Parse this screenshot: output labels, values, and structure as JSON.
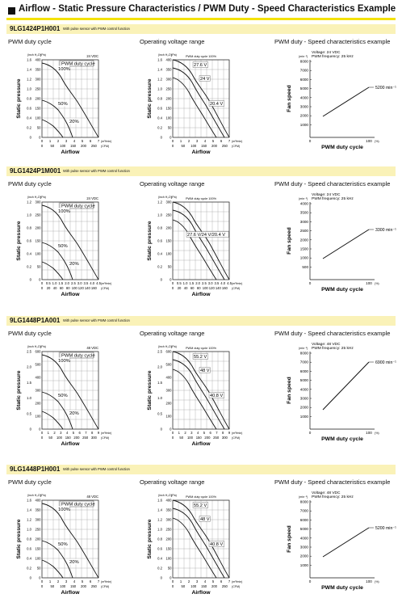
{
  "page_title": "Airflow - Static Pressure Characteristics / PWM Duty - Speed Characteristics Example",
  "panel_titles": [
    "PWM duty cycle",
    "Operating voltage range",
    "PWM duty - Speed characteristics example"
  ],
  "models": [
    {
      "name": "9LG1424P1H001",
      "note": "With pulse sensor with PWM control function",
      "duty_chart": {
        "voltage": "24 VDC",
        "ylabel": "Static pressure",
        "xlabel": "Airflow",
        "y_inch_ticks": [
          "1.6",
          "1.4",
          "1.2",
          "1.0",
          "0.8",
          "0.6",
          "0.4",
          "0.2",
          "0"
        ],
        "y_pa_ticks": [
          "400",
          "350",
          "300",
          "250",
          "200",
          "150",
          "100",
          "50",
          "0"
        ],
        "x_m3_ticks": [
          "0",
          "1",
          "2",
          "3",
          "4",
          "5",
          "6",
          "7"
        ],
        "x_cfm_ticks": [
          "0",
          "50",
          "100",
          "150",
          "200",
          "250"
        ],
        "legend": "PWM duty cycle",
        "labels": [
          "100%",
          "50%",
          "20%"
        ]
      },
      "volt_chart": {
        "ylabel": "Static pressure",
        "xlabel": "Airflow",
        "condition": "PWM duty cycle 100%",
        "labels": [
          "27.6 V",
          "24 V",
          "20.4 V"
        ]
      },
      "speed_chart": {
        "ylabel": "Fan speed",
        "xlabel": "PWM duty cycle",
        "condition": "Voltage: 24 VDC",
        "frequency": "PWM frequency: 25 kHz",
        "y_ticks": [
          "8000",
          "7000",
          "6000",
          "5000",
          "4000",
          "3000",
          "2000",
          "1000"
        ],
        "annotation": "5200 min⁻¹",
        "x_end": "100"
      }
    },
    {
      "name": "9LG1424P1M001",
      "note": "With pulse sensor with PWM control function",
      "duty_chart": {
        "voltage": "24 VDC",
        "ylabel": "Static pressure",
        "xlabel": "Airflow",
        "y_inch_ticks": [
          "1.2",
          "1.0",
          "0.8",
          "0.6",
          "0.4",
          "0.2",
          "0"
        ],
        "y_pa_ticks": [
          "300",
          "250",
          "200",
          "150",
          "100",
          "50",
          "0"
        ],
        "x_m3_ticks": [
          "0",
          "0.5",
          "1.0",
          "1.5",
          "2.0",
          "2.5",
          "3.0",
          "3.5",
          "4.0",
          "4.5"
        ],
        "x_cfm_ticks": [
          "0",
          "20",
          "40",
          "60",
          "80",
          "100",
          "120",
          "140",
          "160"
        ],
        "legend": "PWM duty cycle",
        "labels": [
          "100%",
          "50%",
          "20%"
        ]
      },
      "volt_chart": {
        "ylabel": "Static pressure",
        "xlabel": "Airflow",
        "condition": "PWM duty cycle 100%",
        "labels": [
          "27.6 V/24 V/20.4 V"
        ]
      },
      "speed_chart": {
        "ylabel": "Fan speed",
        "xlabel": "PWM duty cycle",
        "condition": "Voltage: 24 VDC",
        "frequency": "PWM frequency: 25 kHz",
        "y_ticks": [
          "4000",
          "3500",
          "3000",
          "2500",
          "2000",
          "1500",
          "1000",
          "500"
        ],
        "annotation": "3300 min⁻¹",
        "x_end": "100"
      }
    },
    {
      "name": "9LG1448P1A001",
      "note": "With pulse sensor with PWM control function",
      "duty_chart": {
        "voltage": "48 VDC",
        "ylabel": "Static pressure",
        "xlabel": "Airflow",
        "y_inch_ticks": [
          "2.5",
          "2.0",
          "1.5",
          "1.0",
          "0.5",
          "0"
        ],
        "y_pa_ticks": [
          "600",
          "500",
          "400",
          "300",
          "200",
          "100",
          "0"
        ],
        "x_m3_ticks": [
          "0",
          "1",
          "2",
          "3",
          "4",
          "5",
          "6",
          "7",
          "8",
          "9"
        ],
        "x_cfm_ticks": [
          "0",
          "50",
          "100",
          "150",
          "200",
          "250",
          "300"
        ],
        "legend": "PWM duty cycle",
        "labels": [
          "100%",
          "50%",
          "20%"
        ]
      },
      "volt_chart": {
        "ylabel": "Static pressure",
        "xlabel": "Airflow",
        "condition": "PWM duty cycle 100%",
        "labels": [
          "55.2 V",
          "48 V",
          "40.8 V"
        ]
      },
      "speed_chart": {
        "ylabel": "Fan speed",
        "xlabel": "PWM duty cycle",
        "condition": "Voltage: 48 VDC",
        "frequency": "PWM frequency: 25 kHz",
        "y_ticks": [
          "8000",
          "7000",
          "6000",
          "5000",
          "4000",
          "3000",
          "2000",
          "1000"
        ],
        "annotation": "6900 min⁻¹",
        "x_end": "100"
      }
    },
    {
      "name": "9LG1448P1H001",
      "note": "With pulse sensor with PWM control function",
      "duty_chart": {
        "voltage": "48 VDC",
        "ylabel": "Static pressure",
        "xlabel": "Airflow",
        "y_inch_ticks": [
          "1.6",
          "1.4",
          "1.2",
          "1.0",
          "0.8",
          "0.6",
          "0.4",
          "0.2",
          "0"
        ],
        "y_pa_ticks": [
          "400",
          "350",
          "300",
          "250",
          "200",
          "150",
          "100",
          "50",
          "0"
        ],
        "x_m3_ticks": [
          "0",
          "1",
          "2",
          "3",
          "4",
          "5",
          "6",
          "7"
        ],
        "x_cfm_ticks": [
          "0",
          "50",
          "100",
          "150",
          "200",
          "250"
        ],
        "legend": "PWM duty cycle",
        "labels": [
          "100%",
          "50%",
          "20%"
        ]
      },
      "volt_chart": {
        "ylabel": "Static pressure",
        "xlabel": "Airflow",
        "condition": "PWM duty cycle 100%",
        "labels": [
          "55.2 V",
          "48 V",
          "40.8 V"
        ]
      },
      "speed_chart": {
        "ylabel": "Fan speed",
        "xlabel": "PWM duty cycle",
        "condition": "Voltage: 48 VDC",
        "frequency": "PWM frequency: 25 kHz",
        "y_ticks": [
          "8000",
          "7000",
          "6000",
          "5000",
          "4000",
          "3000",
          "2000",
          "1000"
        ],
        "annotation": "5200 min⁻¹",
        "x_end": "100"
      }
    }
  ],
  "units": {
    "y_inch": "(inch H₂O)",
    "y_pa": "(Pa)",
    "x_m3": "(m³/min)",
    "x_cfm": "(CFM)",
    "speed_unit": "(min⁻¹)",
    "pct": "(%)",
    "origin": "0"
  }
}
